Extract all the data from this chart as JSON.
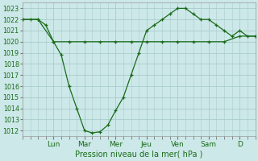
{
  "background_color": "#cce8e8",
  "grid_color": "#aacccc",
  "line_color": "#1a6b1a",
  "xlabel": "Pression niveau de la mer( hPa )",
  "ylim": [
    1011.5,
    1023.5
  ],
  "yticks": [
    1012,
    1013,
    1014,
    1015,
    1016,
    1017,
    1018,
    1019,
    1020,
    1021,
    1022,
    1023
  ],
  "day_labels": [
    "Lun",
    "Mar",
    "Mer",
    "Jeu",
    "Ven",
    "Sam",
    "D"
  ],
  "day_positions": [
    24,
    48,
    72,
    96,
    120,
    144,
    168
  ],
  "xlim": [
    0,
    180
  ],
  "flat_x": [
    0,
    12,
    24,
    36,
    48,
    60,
    72,
    84,
    96,
    108,
    120,
    132,
    144,
    156,
    168,
    180
  ],
  "flat_y": [
    1022,
    1022,
    1020,
    1020,
    1020,
    1020,
    1020,
    1020,
    1020,
    1020,
    1020,
    1020,
    1020,
    1020,
    1020.5,
    1020.5
  ],
  "curve_x": [
    0,
    6,
    12,
    18,
    24,
    30,
    36,
    42,
    48,
    54,
    60,
    66,
    72,
    78,
    84,
    90,
    96,
    102,
    108,
    114,
    120,
    126,
    132,
    138,
    144,
    150,
    156,
    162,
    168,
    174,
    180
  ],
  "curve_y": [
    1022,
    1022,
    1022,
    1021.5,
    1020,
    1018.8,
    1016,
    1014,
    1012,
    1011.8,
    1011.9,
    1012.5,
    1013.8,
    1015,
    1017,
    1019,
    1021,
    1021.5,
    1022,
    1022.5,
    1023,
    1023,
    1022.5,
    1022,
    1022,
    1021.5,
    1021,
    1020.5,
    1021,
    1020.5,
    1020.5
  ]
}
